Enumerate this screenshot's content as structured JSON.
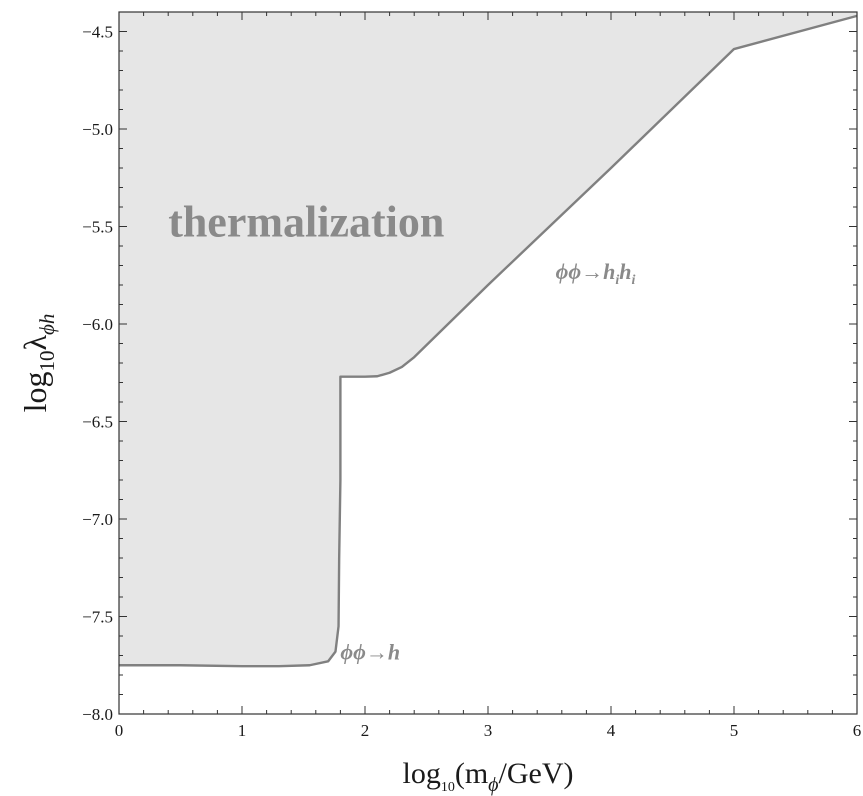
{
  "chart_data": {
    "type": "area",
    "xlim": [
      0,
      6
    ],
    "ylim": [
      -8.0,
      -4.4
    ],
    "x_ticks": [
      0,
      1,
      2,
      3,
      4,
      5,
      6
    ],
    "x_tick_labels": [
      "0",
      "1",
      "2",
      "3",
      "4",
      "5",
      "6"
    ],
    "y_ticks": [
      -8.0,
      -7.5,
      -7.0,
      -6.5,
      -6.0,
      -5.5,
      -5.0,
      -4.5
    ],
    "y_tick_labels": [
      "−8.0",
      "−7.5",
      "−7.0",
      "−6.5",
      "−6.0",
      "−5.5",
      "−5.0",
      "−4.5"
    ],
    "xlabel": {
      "prefix": "log",
      "sub": "10",
      "rest": "(m",
      "rest_sub": "ϕ",
      "suffix": "/GeV)"
    },
    "ylabel": {
      "prefix": "log",
      "sub": "10",
      "greek": "λ",
      "greek_sub": "ϕh"
    },
    "boundary": {
      "x": [
        0,
        0.5,
        1.0,
        1.3,
        1.55,
        1.7,
        1.76,
        1.785,
        1.79,
        1.8,
        1.8,
        1.9,
        2.0,
        2.1,
        2.2,
        2.3,
        2.4,
        3.0,
        4.0,
        5.0,
        6.0
      ],
      "y": [
        -7.75,
        -7.75,
        -7.755,
        -7.755,
        -7.75,
        -7.73,
        -7.68,
        -7.55,
        -7.2,
        -6.8,
        -6.27,
        -6.27,
        -6.27,
        -6.268,
        -6.25,
        -6.22,
        -6.17,
        -5.8,
        -5.2,
        -4.59,
        -4.42
      ]
    },
    "shaded_region": {
      "label": "thermalization",
      "fill": "#e6e6e6",
      "line": "#808080"
    },
    "annotations": [
      {
        "parts": [
          {
            "t": "ϕϕ→h"
          }
        ],
        "x": 1.8,
        "y": -7.72
      },
      {
        "parts": [
          {
            "t": "ϕϕ→h"
          },
          {
            "t": "i",
            "sub": true
          },
          {
            "t": "h"
          },
          {
            "t": "i",
            "sub": true
          }
        ],
        "x": 3.55,
        "y": -5.77
      }
    ],
    "region_label": {
      "text": "thermalization",
      "x": 0.4,
      "y": -5.55
    }
  }
}
